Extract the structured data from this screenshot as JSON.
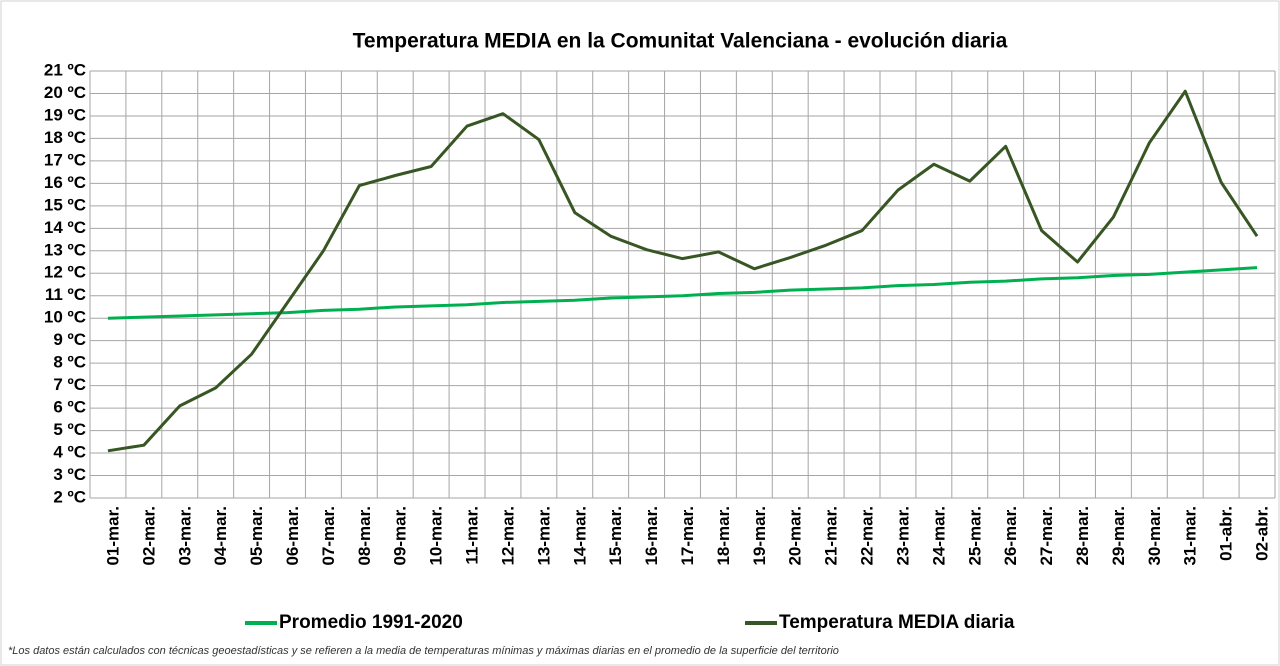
{
  "chart_data": {
    "type": "line",
    "title": "Temperatura MEDIA en la Comunitat Valenciana - evolución diaria",
    "note": "*Los datos están calculados con técnicas geoestadísticas y se refieren a la media de temperaturas mínimas y máximas diarias en el promedio de la superficie del territorio",
    "categories": [
      "01-mar.",
      "02-mar.",
      "03-mar.",
      "04-mar.",
      "05-mar.",
      "06-mar.",
      "07-mar.",
      "08-mar.",
      "09-mar.",
      "10-mar.",
      "11-mar.",
      "12-mar.",
      "13-mar.",
      "14-mar.",
      "15-mar.",
      "16-mar.",
      "17-mar.",
      "18-mar.",
      "19-mar.",
      "20-mar.",
      "21-mar.",
      "22-mar.",
      "23-mar.",
      "24-mar.",
      "25-mar.",
      "26-mar.",
      "27-mar.",
      "28-mar.",
      "29-mar.",
      "30-mar.",
      "31-mar.",
      "01-abr.",
      "02-abr."
    ],
    "series": [
      {
        "name": "Promedio 1991-2020",
        "color": "#00b050",
        "values": [
          10.0,
          10.05,
          10.1,
          10.15,
          10.2,
          10.25,
          10.35,
          10.4,
          10.5,
          10.55,
          10.6,
          10.7,
          10.75,
          10.8,
          10.9,
          10.95,
          11.0,
          11.1,
          11.15,
          11.25,
          11.3,
          11.35,
          11.45,
          11.5,
          11.6,
          11.65,
          11.75,
          11.8,
          11.9,
          11.95,
          12.05,
          12.15,
          12.25
        ]
      },
      {
        "name": "Temperatura MEDIA diaria",
        "color": "#375623",
        "values": [
          4.1,
          4.35,
          6.1,
          6.9,
          8.4,
          10.7,
          13.0,
          15.9,
          16.35,
          16.75,
          18.55,
          19.1,
          17.95,
          14.7,
          13.65,
          13.05,
          12.65,
          12.95,
          12.2,
          12.7,
          13.25,
          13.9,
          15.7,
          16.85,
          16.1,
          17.65,
          13.9,
          12.5,
          14.5,
          17.8,
          20.1,
          16.05,
          13.65
        ]
      }
    ],
    "ylim": [
      2,
      21
    ],
    "yticks": [
      {
        "value": 2,
        "label": "2 ºC"
      },
      {
        "value": 3,
        "label": "3 ºC"
      },
      {
        "value": 4,
        "label": "4 ºC"
      },
      {
        "value": 5,
        "label": "5 ºC"
      },
      {
        "value": 6,
        "label": "6 ºC"
      },
      {
        "value": 7,
        "label": "7 ºC"
      },
      {
        "value": 8,
        "label": "8 ºC"
      },
      {
        "value": 9,
        "label": "9 ºC"
      },
      {
        "value": 10,
        "label": "10 ºC"
      },
      {
        "value": 11,
        "label": "11 ºC"
      },
      {
        "value": 12,
        "label": "12 ºC"
      },
      {
        "value": 13,
        "label": "13 ºC"
      },
      {
        "value": 14,
        "label": "14 ºC"
      },
      {
        "value": 15,
        "label": "15 ºC"
      },
      {
        "value": 16,
        "label": "16 ºC"
      },
      {
        "value": 17,
        "label": "17 ºC"
      },
      {
        "value": 18,
        "label": "18 ºC"
      },
      {
        "value": 19,
        "label": "19 ºC"
      },
      {
        "value": 20,
        "label": "20 ºC"
      },
      {
        "value": 21,
        "label": "21 ºC"
      }
    ],
    "grid": true
  }
}
